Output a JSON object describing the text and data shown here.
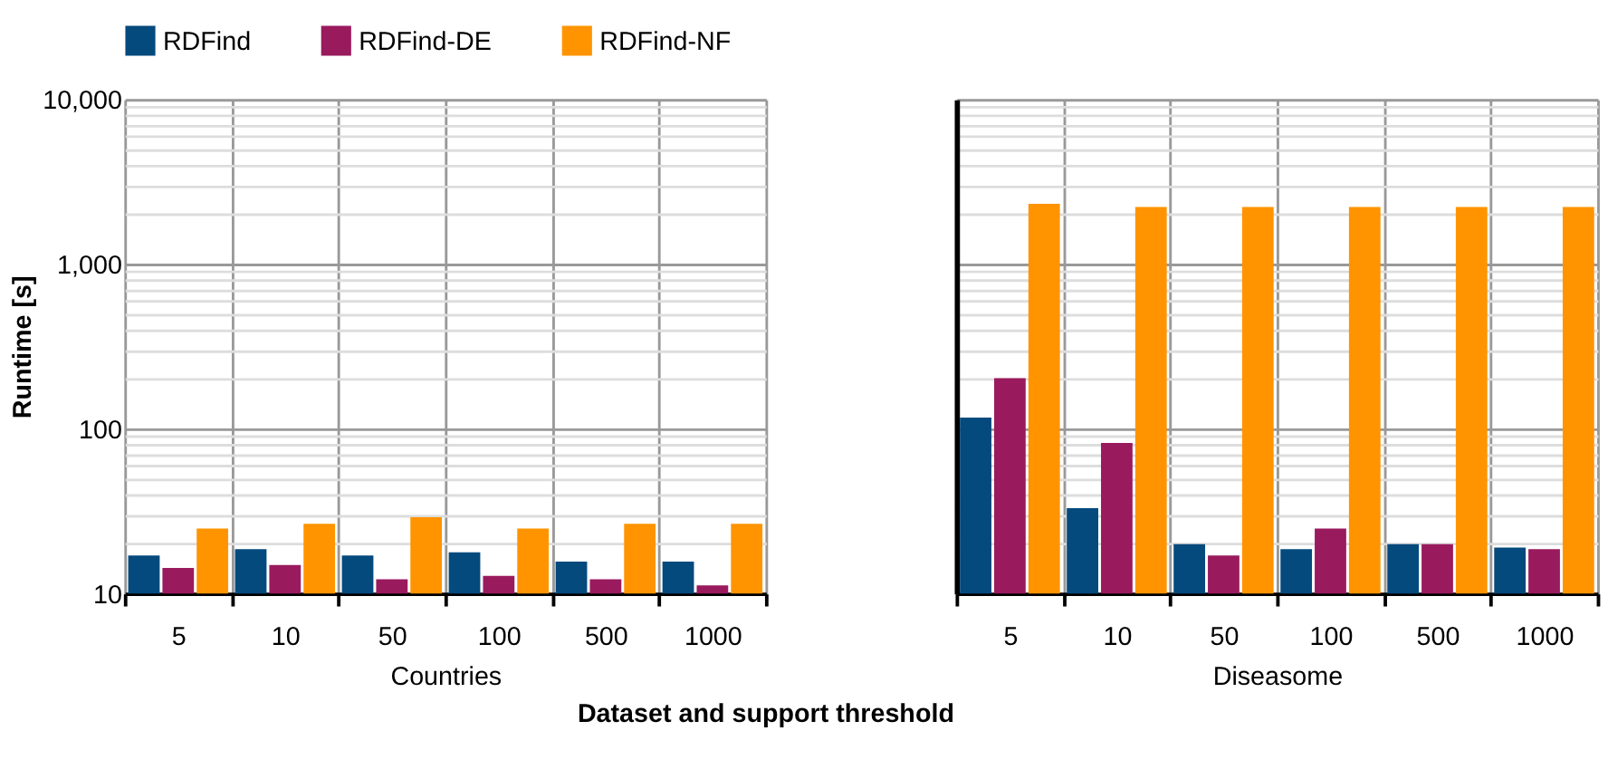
{
  "chart_data": [
    {
      "type": "bar",
      "categories": [
        "5",
        "10",
        "50",
        "100",
        "500",
        "1000"
      ],
      "series": [
        {
          "name": "RDFind",
          "color": "#054a7d",
          "values": [
            17.0,
            18.6,
            17.0,
            17.8,
            15.6,
            15.6
          ]
        },
        {
          "name": "RDFind-DE",
          "color": "#9a1a5e",
          "values": [
            14.3,
            14.9,
            12.2,
            12.8,
            12.2,
            11.2
          ]
        },
        {
          "name": "RDFind-NF",
          "color": "#ff9400",
          "values": [
            24.8,
            26.5,
            29,
            24.8,
            26.5,
            26.5
          ]
        }
      ],
      "xlabel": "Countries",
      "ylabel": "Runtime [s]",
      "annotations": [
        "Dataset and support threshold"
      ],
      "log": "y",
      "ylim": [
        10,
        10000
      ],
      "yticks": [
        {
          "value": 10,
          "label": "10"
        },
        {
          "value": 20,
          "label": null
        },
        {
          "value": 30,
          "label": null
        },
        {
          "value": 40,
          "label": null
        },
        {
          "value": 50,
          "label": null
        },
        {
          "value": 60,
          "label": null
        },
        {
          "value": 70,
          "label": null
        },
        {
          "value": 80,
          "label": null
        },
        {
          "value": 90,
          "label": null
        },
        {
          "value": 100,
          "label": "100"
        },
        {
          "value": 200,
          "label": null
        },
        {
          "value": 300,
          "label": null
        },
        {
          "value": 400,
          "label": null
        },
        {
          "value": 500,
          "label": null
        },
        {
          "value": 600,
          "label": null
        },
        {
          "value": 700,
          "label": null
        },
        {
          "value": 800,
          "label": null
        },
        {
          "value": 900,
          "label": null
        },
        {
          "value": 1000,
          "label": "1,000"
        },
        {
          "value": 2000,
          "label": null
        },
        {
          "value": 3000,
          "label": null
        },
        {
          "value": 4000,
          "label": null
        },
        {
          "value": 5000,
          "label": null
        },
        {
          "value": 6000,
          "label": null
        },
        {
          "value": 7000,
          "label": null
        },
        {
          "value": 8000,
          "label": null
        },
        {
          "value": 9000,
          "label": null
        },
        {
          "value": 10000,
          "label": "10,000"
        }
      ],
      "grid": true,
      "legend": "top"
    },
    {
      "type": "bar",
      "categories": [
        "5",
        "10",
        "50",
        "100",
        "500",
        "1000"
      ],
      "series": [
        {
          "name": "RDFind",
          "color": "#054a7d",
          "values": [
            117,
            33,
            19.9,
            18.6,
            19.9,
            19.0
          ]
        },
        {
          "name": "RDFind-DE",
          "color": "#9a1a5e",
          "values": [
            203,
            82,
            17.0,
            24.8,
            19.9,
            18.6
          ]
        },
        {
          "name": "RDFind-NF",
          "color": "#ff9400",
          "values": [
            2320,
            2220,
            2220,
            2220,
            2220,
            2220
          ]
        }
      ],
      "xlabel": "Diseasome",
      "log": "y",
      "ylim": [
        10,
        10000
      ],
      "yticks": [
        {
          "value": 10,
          "label": "10"
        },
        {
          "value": 20,
          "label": null
        },
        {
          "value": 30,
          "label": null
        },
        {
          "value": 40,
          "label": null
        },
        {
          "value": 50,
          "label": null
        },
        {
          "value": 60,
          "label": null
        },
        {
          "value": 70,
          "label": null
        },
        {
          "value": 80,
          "label": null
        },
        {
          "value": 90,
          "label": null
        },
        {
          "value": 100,
          "label": "100"
        },
        {
          "value": 200,
          "label": null
        },
        {
          "value": 300,
          "label": null
        },
        {
          "value": 400,
          "label": null
        },
        {
          "value": 500,
          "label": null
        },
        {
          "value": 600,
          "label": null
        },
        {
          "value": 700,
          "label": null
        },
        {
          "value": 800,
          "label": null
        },
        {
          "value": 900,
          "label": null
        },
        {
          "value": 1000,
          "label": "1,000"
        },
        {
          "value": 2000,
          "label": null
        },
        {
          "value": 3000,
          "label": null
        },
        {
          "value": 4000,
          "label": null
        },
        {
          "value": 5000,
          "label": null
        },
        {
          "value": 6000,
          "label": null
        },
        {
          "value": 7000,
          "label": null
        },
        {
          "value": 8000,
          "label": null
        },
        {
          "value": 9000,
          "label": null
        },
        {
          "value": 10000,
          "label": "10,000"
        }
      ],
      "grid": true,
      "legend": "top",
      "tick_labels": "x"
    }
  ]
}
